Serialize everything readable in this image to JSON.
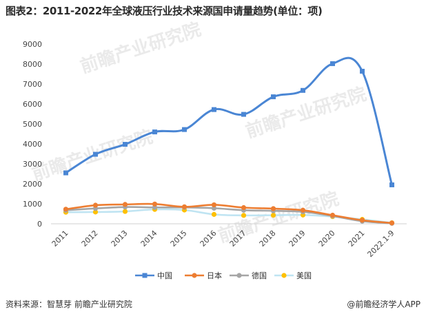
{
  "chart_data": {
    "type": "line",
    "title": "图表2：2011-2022年全球液压行业技术来源国申请量趋势(单位：项)",
    "xlabel": "",
    "ylabel": "",
    "categories": [
      "2011",
      "2012",
      "2013",
      "2014",
      "2015",
      "2016",
      "2017",
      "2018",
      "2019",
      "2020",
      "2021",
      "2022.1-9"
    ],
    "ylim": [
      0,
      9000
    ],
    "yticks": [
      0,
      1000,
      2000,
      3000,
      4000,
      5000,
      6000,
      7000,
      8000,
      9000
    ],
    "grid": false,
    "legend_position": "bottom",
    "smooth": true,
    "series": [
      {
        "name": "中国",
        "color": "#4a86d4",
        "marker": "square",
        "values": [
          2550,
          3480,
          3980,
          4600,
          4720,
          5720,
          5480,
          6360,
          6680,
          8020,
          7640,
          1950
        ]
      },
      {
        "name": "日本",
        "color": "#ed7d31",
        "marker": "circle",
        "values": [
          730,
          930,
          970,
          990,
          850,
          950,
          810,
          760,
          680,
          430,
          180,
          40
        ]
      },
      {
        "name": "德国",
        "color": "#a5a5a5",
        "marker": "circle",
        "values": [
          680,
          770,
          840,
          820,
          820,
          780,
          680,
          650,
          600,
          390,
          130,
          25
        ]
      },
      {
        "name": "美国",
        "color": "#ffc000",
        "marker": "circle",
        "line_color": "#bfe4f2",
        "values": [
          580,
          590,
          620,
          720,
          690,
          470,
          420,
          430,
          440,
          360,
          220,
          50
        ]
      }
    ]
  },
  "footer": {
    "source": "资料来源：智慧芽 前瞻产业研究院",
    "brand": "@前瞻经济学人APP"
  },
  "watermark": {
    "text": "前瞻产业研究院"
  }
}
